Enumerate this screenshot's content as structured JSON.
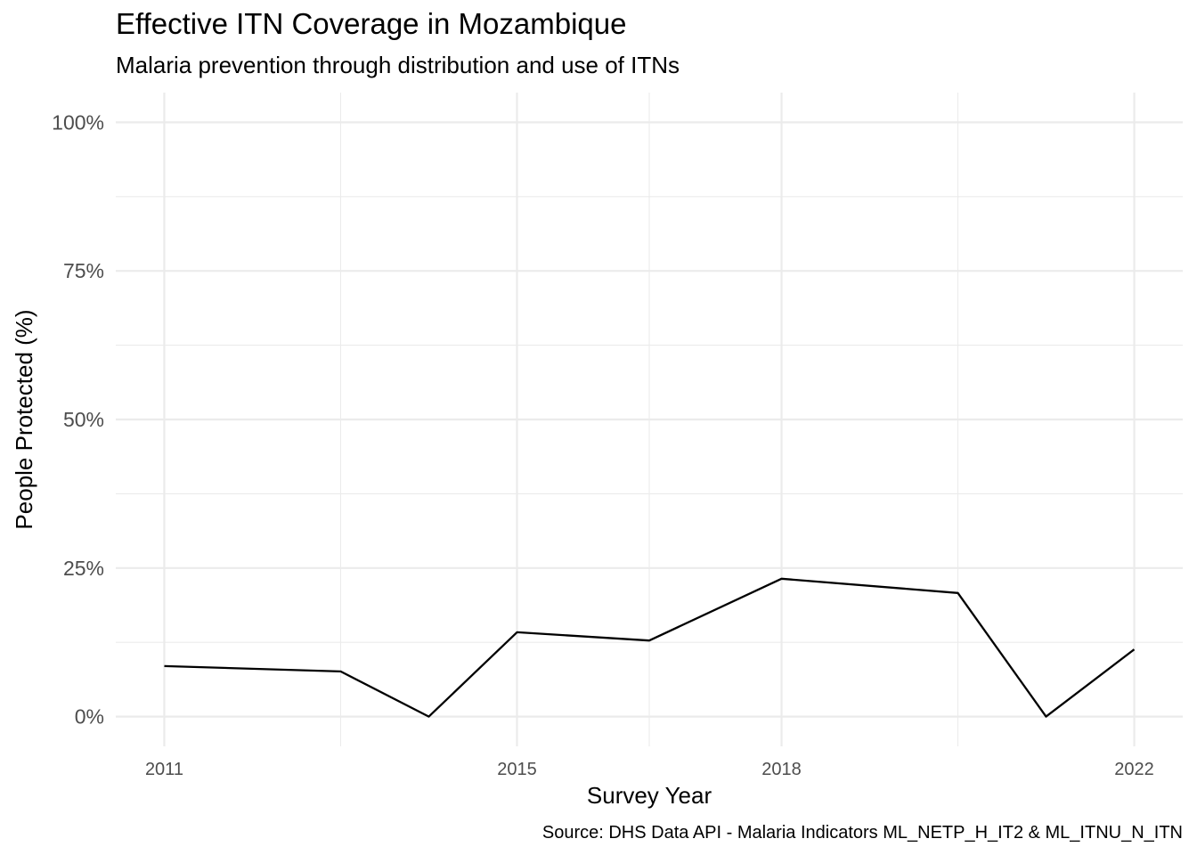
{
  "chart_data": {
    "type": "line",
    "title": "Effective ITN Coverage in Mozambique",
    "subtitle": "Malaria prevention through distribution and use of ITNs",
    "xlabel": "Survey Year",
    "ylabel": "People Protected (%)",
    "caption": "Source: DHS Data API - Malaria Indicators ML_NETP_H_IT2 & ML_ITNU_N_ITN",
    "x_tick_labels": [
      "2011",
      "2015",
      "2018",
      "2022"
    ],
    "x_ticks": [
      2011,
      2015,
      2018,
      2022
    ],
    "y_tick_labels": [
      "0%",
      "25%",
      "50%",
      "75%",
      "100%"
    ],
    "y_ticks": [
      0,
      25,
      50,
      75,
      100
    ],
    "xlim": [
      2010.45,
      2022.55
    ],
    "ylim": [
      -5,
      105
    ],
    "grid": true,
    "line_color": "#000000",
    "grid_color": "#ebebeb",
    "x": [
      2011,
      2013,
      2014,
      2015,
      2016.5,
      2018,
      2020,
      2021,
      2022
    ],
    "y": [
      8.5,
      7.6,
      0,
      14.2,
      12.8,
      23.2,
      20.8,
      0,
      11.3
    ]
  }
}
